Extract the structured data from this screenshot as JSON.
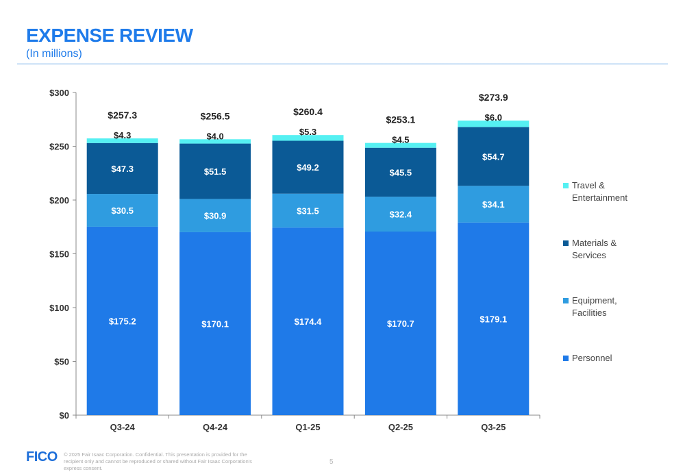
{
  "header": {
    "title": "EXPENSE REVIEW",
    "subtitle": "(In millions)"
  },
  "footer": {
    "logo": "FICO",
    "disclaimer": "© 2025 Fair Isaac Corporation. Confidential. This presentation is provided for the recipient only and cannot be reproduced or shared without Fair Isaac Corporation's express consent.",
    "page_number": "5"
  },
  "colors": {
    "personnel": "#1f7ae8",
    "equipment": "#2f9ce0",
    "materials": "#0b5a96",
    "travel": "#55f0f2",
    "title": "#1e7bea"
  },
  "chart_data": {
    "type": "bar",
    "stacked": true,
    "categories": [
      "Q3-24",
      "Q4-24",
      "Q1-25",
      "Q2-25",
      "Q3-25"
    ],
    "series": [
      {
        "name": "Personnel",
        "values": [
          175.2,
          170.1,
          174.4,
          170.7,
          179.1
        ],
        "labels": [
          "$175.2",
          "$170.1",
          "$174.4",
          "$170.7",
          "$179.1"
        ],
        "color": "#1f7ae8",
        "label_color": "#ffffff"
      },
      {
        "name": "Equipment, Facilities",
        "values": [
          30.5,
          30.9,
          31.5,
          32.4,
          34.1
        ],
        "labels": [
          "$30.5",
          "$30.9",
          "$31.5",
          "$32.4",
          "$34.1"
        ],
        "color": "#2f9ce0",
        "label_color": "#ffffff"
      },
      {
        "name": "Materials & Services",
        "values": [
          47.3,
          51.5,
          49.2,
          45.5,
          54.7
        ],
        "labels": [
          "$47.3",
          "$51.5",
          "$49.2",
          "$45.5",
          "$54.7"
        ],
        "color": "#0b5a96",
        "label_color": "#ffffff"
      },
      {
        "name": "Travel & Entertainment",
        "values": [
          4.3,
          4.0,
          5.3,
          4.5,
          6.0
        ],
        "labels": [
          "$4.3",
          "$4.0",
          "$5.3",
          "$4.5",
          "$6.0"
        ],
        "color": "#55f0f2",
        "label_color": "#222222"
      }
    ],
    "totals": [
      257.3,
      256.5,
      260.4,
      253.1,
      273.9
    ],
    "total_labels": [
      "$257.3",
      "$256.5",
      "$260.4",
      "$253.1",
      "$273.9"
    ],
    "ylim": [
      0,
      300
    ],
    "yticks": [
      0,
      50,
      100,
      150,
      200,
      250,
      300
    ],
    "ytick_labels": [
      "$0",
      "$50",
      "$100",
      "$150",
      "$200",
      "$250",
      "$300"
    ],
    "legend": [
      {
        "label": "Travel &\nEntertainment",
        "color": "#55f0f2"
      },
      {
        "label": "Materials &\nServices",
        "color": "#0b5a96"
      },
      {
        "label": "Equipment,\nFacilities",
        "color": "#2f9ce0"
      },
      {
        "label": "Personnel",
        "color": "#1f7ae8"
      }
    ],
    "legend_position": "right",
    "grid": false
  }
}
